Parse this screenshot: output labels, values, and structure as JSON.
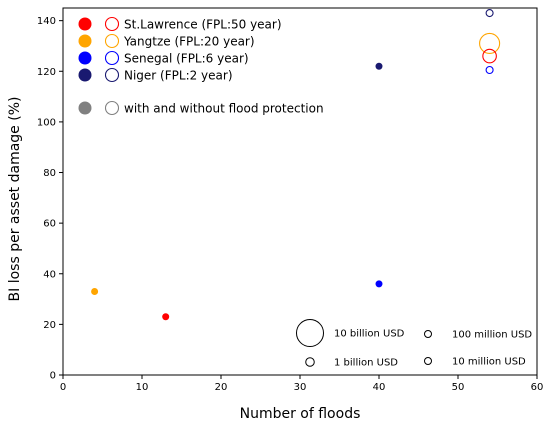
{
  "chart_data": {
    "type": "scatter",
    "xlabel": "Number of floods",
    "ylabel": "BI loss per asset damage (%)",
    "xlim": [
      0,
      60
    ],
    "ylim": [
      0,
      145
    ],
    "x_ticks": [
      0,
      10,
      20,
      30,
      40,
      50,
      60
    ],
    "y_ticks": [
      0,
      20,
      40,
      60,
      80,
      100,
      120,
      140
    ],
    "grid": false,
    "legend_placement": "top-left",
    "series": [
      {
        "name": "St.Lawrence (FPL:50 year)",
        "color": "#ff0000",
        "points": [
          {
            "x": 13,
            "y": 23,
            "loss_usd_billion": 0.03,
            "flood_protection": true
          },
          {
            "x": 54,
            "y": 126,
            "loss_usd_billion": 2.5,
            "flood_protection": false
          }
        ]
      },
      {
        "name": "Yangtze (FPL:20 year)",
        "color": "#ffa500",
        "points": [
          {
            "x": 4,
            "y": 33,
            "loss_usd_billion": 0.04,
            "flood_protection": true
          },
          {
            "x": 54,
            "y": 131,
            "loss_usd_billion": 5.5,
            "flood_protection": false
          }
        ]
      },
      {
        "name": "Senegal (FPL:6 year)",
        "color": "#0000ff",
        "points": [
          {
            "x": 40,
            "y": 36,
            "loss_usd_billion": 0.03,
            "flood_protection": true
          },
          {
            "x": 54,
            "y": 120.5,
            "loss_usd_billion": 0.4,
            "flood_protection": false
          }
        ]
      },
      {
        "name": "Niger (FPL:2 year)",
        "color": "#191970",
        "points": [
          {
            "x": 40,
            "y": 122,
            "loss_usd_billion": 0.04,
            "flood_protection": true
          },
          {
            "x": 54,
            "y": 143,
            "loss_usd_billion": 0.4,
            "flood_protection": false
          }
        ]
      }
    ],
    "protection_legend": {
      "label": "with and without flood protection",
      "color": "#808080"
    },
    "size_legend": [
      {
        "label": "10 billion USD",
        "value_usd_billion": 10
      },
      {
        "label": "1 billion USD",
        "value_usd_billion": 1
      },
      {
        "label": "100 million USD",
        "value_usd_billion": 0.1
      },
      {
        "label": "10 million USD",
        "value_usd_billion": 0.01
      }
    ]
  }
}
